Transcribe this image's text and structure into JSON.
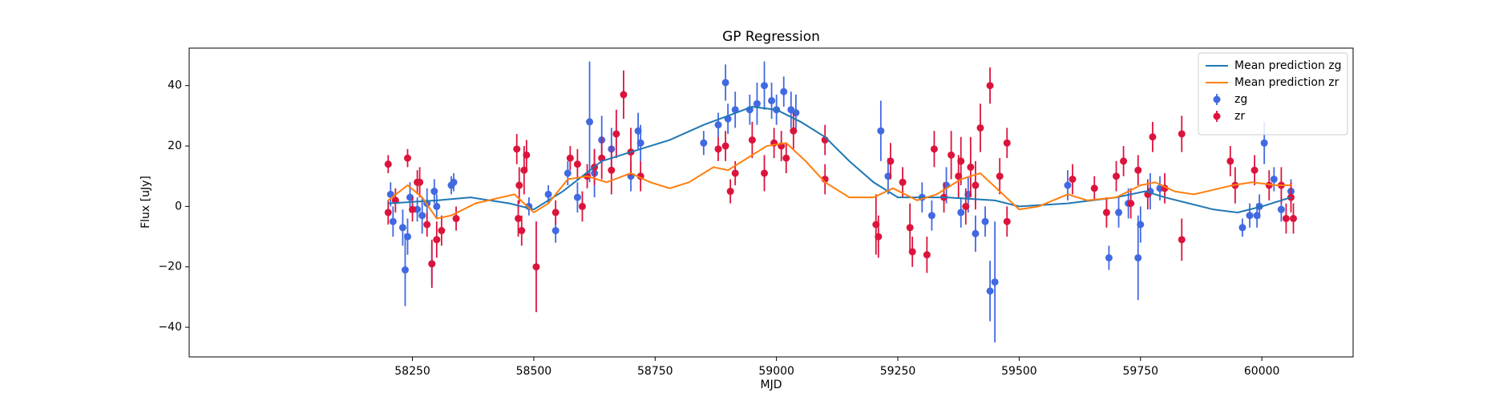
{
  "chart_data": {
    "type": "errorbar",
    "title": "GP Regression",
    "x_label": "MJD",
    "y_label": "Flux [uJy]",
    "xlim": [
      57790,
      60188
    ],
    "ylim": [
      -49.8,
      52.4
    ],
    "xticks": [
      58250,
      58500,
      58750,
      59000,
      59250,
      59500,
      59750,
      60000
    ],
    "yticks": [
      {
        "value": -40,
        "label": "−40"
      },
      {
        "value": -20,
        "label": "−20"
      },
      0,
      20,
      40
    ],
    "legend": "upper right",
    "series": [
      {
        "name": "Mean prediction zg",
        "kind": "line",
        "color": "#1f77b4",
        "x": [
          58200,
          58300,
          58370,
          58450,
          58500,
          58560,
          58640,
          58700,
          58780,
          58850,
          58900,
          58950,
          59000,
          59050,
          59100,
          59150,
          59200,
          59250,
          59350,
          59450,
          59500,
          59600,
          59700,
          59760,
          59800,
          59900,
          59950,
          60000,
          60060
        ],
        "values": [
          1,
          2,
          3,
          1,
          -1,
          5,
          15,
          18,
          22,
          27,
          30,
          33,
          32,
          28,
          23,
          15,
          8,
          3,
          3,
          2,
          0,
          1,
          3,
          5,
          3,
          -1,
          -2,
          0,
          3
        ]
      },
      {
        "name": "Mean prediction zr",
        "kind": "line",
        "color": "#ff7f0e",
        "x": [
          58200,
          58240,
          58270,
          58300,
          58330,
          58380,
          58460,
          58480,
          58500,
          58530,
          58570,
          58610,
          58650,
          58700,
          58740,
          58780,
          58820,
          58870,
          58900,
          58940,
          58980,
          59020,
          59060,
          59100,
          59150,
          59200,
          59240,
          59290,
          59330,
          59380,
          59420,
          59460,
          59500,
          59540,
          59600,
          59640,
          59700,
          59750,
          59780,
          59820,
          59860,
          59940,
          59980,
          60030,
          60060
        ],
        "values": [
          2,
          7,
          3,
          -4,
          -3,
          1,
          4,
          1,
          -2,
          1,
          9,
          10,
          8,
          11,
          8,
          6,
          8,
          13,
          12,
          16,
          20,
          21,
          15,
          8,
          3,
          3,
          6,
          2,
          4,
          9,
          11,
          5,
          -1,
          0,
          4,
          2,
          3,
          7,
          8,
          5,
          4,
          7,
          8,
          7,
          7
        ]
      },
      {
        "name": "zg",
        "kind": "errorbar",
        "color": "#4169e1",
        "x": [
          58205,
          58210,
          58230,
          58235,
          58240,
          58245,
          58260,
          58270,
          58280,
          58290,
          58295,
          58300,
          58330,
          58335,
          58490,
          58530,
          58545,
          58570,
          58590,
          58615,
          58625,
          58640,
          58660,
          58700,
          58715,
          58720,
          58850,
          58880,
          58895,
          58900,
          58915,
          58945,
          58960,
          58975,
          58990,
          59000,
          59015,
          59030,
          59040,
          59215,
          59230,
          59300,
          59320,
          59350,
          59380,
          59395,
          59410,
          59430,
          59440,
          59450,
          59600,
          59685,
          59705,
          59725,
          59745,
          59750,
          59770,
          59790,
          59960,
          59975,
          59990,
          59995,
          60005,
          60025,
          60040,
          60060
        ],
        "values": [
          4,
          -5,
          -7,
          -21,
          -10,
          3,
          -1,
          -3,
          1,
          -19,
          5,
          0,
          7,
          8,
          0,
          4,
          -8,
          11,
          3,
          28,
          11,
          22,
          19,
          10,
          25,
          21,
          21,
          27,
          41,
          29,
          32,
          32,
          34,
          40,
          35,
          32,
          38,
          32,
          31,
          25,
          10,
          3,
          -3,
          7,
          -2,
          4,
          -9,
          -5,
          -28,
          -25,
          7,
          -17,
          -2,
          1,
          -17,
          -6,
          5,
          6,
          -7,
          -3,
          -3,
          0,
          21,
          9,
          -1,
          5
        ],
        "errors": [
          4,
          5,
          6,
          12,
          6,
          5,
          4,
          6,
          5,
          7,
          4,
          4,
          3,
          3,
          3,
          3,
          4,
          4,
          5,
          20,
          8,
          8,
          7,
          5,
          6,
          6,
          4,
          4,
          6,
          5,
          6,
          5,
          7,
          8,
          6,
          5,
          5,
          6,
          6,
          10,
          6,
          5,
          5,
          6,
          5,
          6,
          6,
          5,
          10,
          20,
          5,
          4,
          5,
          5,
          14,
          6,
          6,
          4,
          3,
          4,
          4,
          4,
          7,
          4,
          4,
          4
        ]
      },
      {
        "name": "zr",
        "kind": "errorbar",
        "color": "#dc143c",
        "x": [
          58200,
          58200,
          58215,
          58240,
          58250,
          58260,
          58265,
          58280,
          58290,
          58300,
          58310,
          58340,
          58465,
          58468,
          58470,
          58475,
          58480,
          58485,
          58505,
          58545,
          58575,
          58590,
          58600,
          58610,
          58625,
          58640,
          58660,
          58670,
          58685,
          58700,
          58720,
          58880,
          58895,
          58905,
          58915,
          58950,
          58975,
          58995,
          59010,
          59020,
          59035,
          59100,
          59100,
          59205,
          59210,
          59235,
          59260,
          59275,
          59280,
          59310,
          59325,
          59345,
          59360,
          59375,
          59380,
          59390,
          59400,
          59410,
          59420,
          59440,
          59460,
          59475,
          59475,
          59610,
          59655,
          59680,
          59700,
          59715,
          59730,
          59745,
          59765,
          59775,
          59800,
          59835,
          59835,
          59935,
          59945,
          59985,
          60015,
          60040,
          60050,
          60060,
          60065
        ],
        "values": [
          14,
          -2,
          2,
          16,
          -1,
          8,
          8,
          -6,
          -19,
          -11,
          -8,
          -4,
          19,
          -4,
          7,
          -8,
          12,
          17,
          -20,
          -2,
          16,
          14,
          0,
          10,
          13,
          16,
          12,
          24,
          37,
          18,
          10,
          19,
          20,
          5,
          11,
          22,
          11,
          21,
          20,
          16,
          25,
          22,
          9,
          -6,
          -10,
          15,
          8,
          -7,
          -15,
          -16,
          19,
          3,
          17,
          10,
          15,
          0,
          13,
          7,
          26,
          40,
          10,
          -5,
          21,
          9,
          6,
          -2,
          10,
          15,
          1,
          12,
          4,
          23,
          6,
          -11,
          24,
          15,
          7,
          12,
          7,
          7,
          -4,
          3,
          -4
        ],
        "errors": [
          3,
          4,
          4,
          3,
          4,
          4,
          5,
          4,
          8,
          6,
          5,
          4,
          5,
          6,
          6,
          5,
          8,
          5,
          15,
          4,
          4,
          5,
          5,
          4,
          6,
          7,
          8,
          8,
          8,
          8,
          5,
          4,
          5,
          4,
          4,
          6,
          6,
          5,
          5,
          5,
          6,
          5,
          5,
          10,
          7,
          6,
          5,
          8,
          5,
          6,
          6,
          5,
          8,
          7,
          8,
          6,
          10,
          8,
          8,
          6,
          6,
          5,
          5,
          5,
          4,
          5,
          5,
          5,
          5,
          5,
          5,
          5,
          5,
          7,
          6,
          5,
          6,
          5,
          5,
          6,
          5,
          5,
          5
        ]
      }
    ]
  }
}
